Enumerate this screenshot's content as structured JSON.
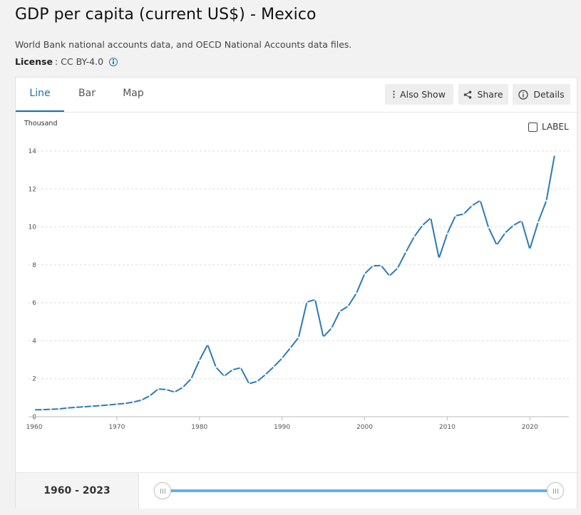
{
  "page": {
    "title": "GDP per capita (current US$) - Mexico",
    "source": "World Bank national accounts data, and OECD National Accounts data files.",
    "license_label": "License",
    "license_value": ": CC BY-4.0",
    "info_icon": "info-icon"
  },
  "tabs": [
    {
      "label": "Line",
      "active": true
    },
    {
      "label": "Bar",
      "active": false
    },
    {
      "label": "Map",
      "active": false
    }
  ],
  "toolbar": {
    "also_show": "Also Show",
    "share": "Share",
    "details": "Details",
    "icons": {
      "also_show": "vertical-dots-icon",
      "share": "share-icon",
      "details": "info-icon"
    }
  },
  "label_toggle": {
    "text": "LABEL",
    "checked": false
  },
  "footer": {
    "range_start": "1960",
    "range_sep": " - ",
    "range_end": "2023"
  },
  "colors": {
    "line": "#2b7bb5",
    "accent": "#1a6fb0",
    "slider": "#62b3e3",
    "grid": "#dddddd"
  },
  "chart_data": {
    "type": "line",
    "ylabel_unit": "Thousand",
    "ylim": [
      0,
      14
    ],
    "yticks": [
      0,
      2,
      4,
      6,
      8,
      10,
      12,
      14
    ],
    "xlim": [
      1960,
      2023
    ],
    "xticks": [
      1960,
      1970,
      1980,
      1990,
      2000,
      2010,
      2020
    ],
    "grid": true,
    "series": [
      {
        "x": [
          1960,
          1961,
          1962,
          1963,
          1964,
          1965,
          1966,
          1967,
          1968,
          1969,
          1970,
          1971,
          1972,
          1973,
          1974,
          1975,
          1976,
          1977,
          1978,
          1979,
          1980,
          1981,
          1982,
          1983,
          1984,
          1985,
          1986,
          1987,
          1988,
          1989,
          1990,
          1991,
          1992,
          1993,
          1994,
          1995,
          1996,
          1997,
          1998,
          1999,
          2000,
          2001,
          2002,
          2003,
          2004,
          2005,
          2006,
          2007,
          2008,
          2009,
          2010,
          2011,
          2012,
          2013,
          2014,
          2015,
          2016,
          2017,
          2018,
          2019,
          2020,
          2021,
          2022,
          2023
        ],
        "values": [
          0.36,
          0.37,
          0.39,
          0.41,
          0.46,
          0.49,
          0.52,
          0.55,
          0.58,
          0.62,
          0.66,
          0.7,
          0.77,
          0.88,
          1.1,
          1.46,
          1.43,
          1.3,
          1.55,
          2.0,
          2.97,
          3.8,
          2.61,
          2.14,
          2.47,
          2.58,
          1.74,
          1.86,
          2.22,
          2.63,
          3.08,
          3.62,
          4.17,
          6.04,
          6.17,
          4.2,
          4.67,
          5.55,
          5.82,
          6.5,
          7.53,
          7.95,
          7.97,
          7.42,
          7.83,
          8.68,
          9.48,
          10.08,
          10.47,
          8.35,
          9.65,
          10.59,
          10.68,
          11.12,
          11.39,
          9.96,
          9.05,
          9.68,
          10.08,
          10.32,
          8.83,
          10.25,
          11.38,
          13.79
        ]
      }
    ]
  }
}
